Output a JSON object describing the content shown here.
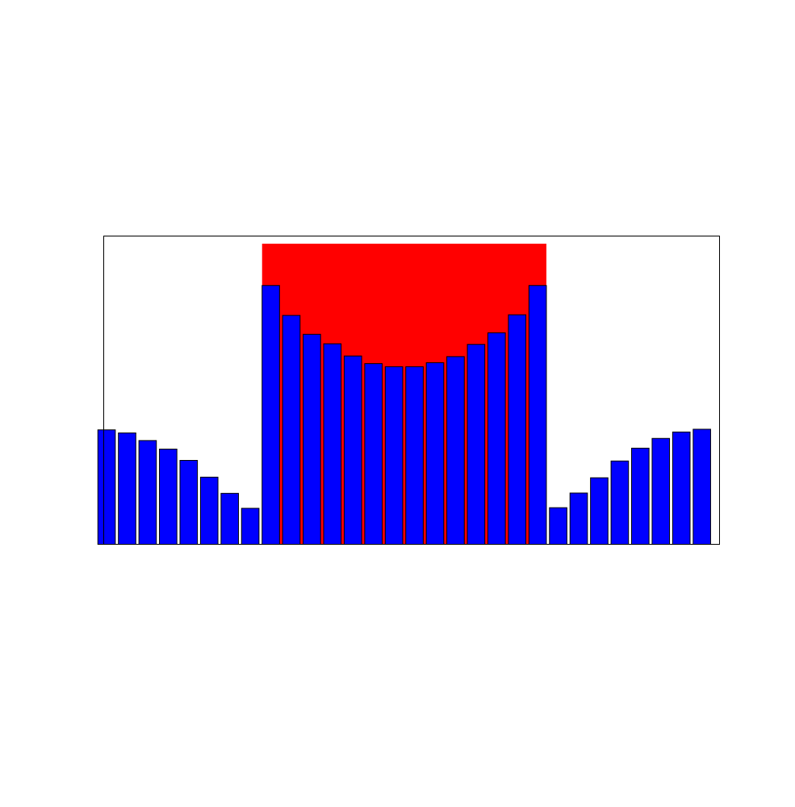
{
  "chart_data": {
    "type": "bar",
    "title": "",
    "xlabel": "",
    "ylabel": "",
    "x": [
      1,
      2,
      3,
      4,
      5,
      6,
      7,
      8,
      9,
      10,
      11,
      12,
      13,
      14,
      15,
      16,
      17,
      18,
      19,
      20,
      21,
      22,
      23,
      24,
      25,
      26,
      27,
      28,
      29,
      30
    ],
    "values": [
      0.375,
      0.365,
      0.34,
      0.312,
      0.275,
      0.22,
      0.167,
      0.118,
      0.848,
      0.75,
      0.688,
      0.657,
      0.617,
      0.592,
      0.582,
      0.582,
      0.595,
      0.615,
      0.655,
      0.693,
      0.752,
      0.848,
      0.12,
      0.168,
      0.218,
      0.273,
      0.315,
      0.347,
      0.368,
      0.377
    ],
    "xlim": [
      0.86,
      30.86
    ],
    "ylim": [
      0,
      1.01
    ],
    "highlight": {
      "from": 9,
      "to": 22,
      "value": 0.985,
      "color": "#ff0000"
    },
    "colors": {
      "bar_fill": "#0000ff",
      "bar_edge": "#000000",
      "frame": "#000000"
    },
    "grid": false,
    "legend": "none"
  }
}
